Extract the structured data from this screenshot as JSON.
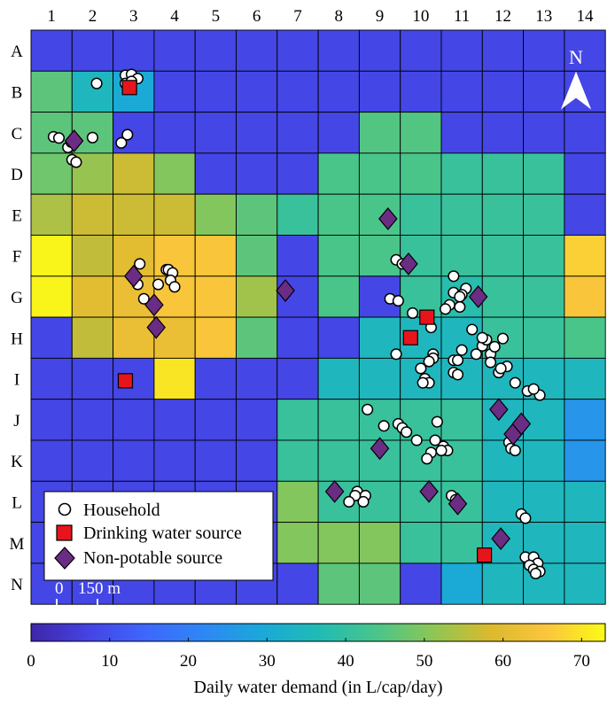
{
  "grid": {
    "columns": [
      "1",
      "2",
      "3",
      "4",
      "5",
      "6",
      "7",
      "8",
      "9",
      "10",
      "11",
      "12",
      "13",
      "14"
    ],
    "rows": [
      "A",
      "B",
      "C",
      "D",
      "E",
      "F",
      "G",
      "H",
      "I",
      "J",
      "K",
      "L",
      "M",
      "N"
    ],
    "cells": [
      [
        8,
        8,
        8,
        8,
        8,
        8,
        8,
        8,
        8,
        8,
        8,
        8,
        8,
        8
      ],
      [
        46,
        35,
        30,
        8,
        8,
        8,
        8,
        8,
        8,
        8,
        8,
        8,
        8,
        8
      ],
      [
        46,
        46,
        8,
        8,
        8,
        8,
        8,
        8,
        45,
        45,
        8,
        8,
        8,
        8
      ],
      [
        48,
        52,
        57,
        50,
        8,
        8,
        8,
        44,
        44,
        44,
        41,
        41,
        41,
        8
      ],
      [
        54,
        57,
        57,
        57,
        50,
        46,
        41,
        44,
        44,
        41,
        41,
        41,
        41,
        8
      ],
      [
        72,
        56,
        60,
        65,
        65,
        46,
        8,
        44,
        44,
        41,
        41,
        41,
        41,
        67
      ],
      [
        72,
        60,
        62,
        65,
        65,
        53,
        8,
        44,
        8,
        41,
        38,
        41,
        41,
        65
      ],
      [
        8,
        56,
        62,
        62,
        65,
        46,
        8,
        8,
        35,
        35,
        35,
        41,
        41,
        44
      ],
      [
        8,
        8,
        8,
        70,
        8,
        8,
        8,
        35,
        35,
        35,
        35,
        35,
        35,
        35
      ],
      [
        8,
        8,
        8,
        8,
        8,
        8,
        41,
        41,
        41,
        41,
        41,
        35,
        35,
        25
      ],
      [
        8,
        8,
        8,
        8,
        8,
        8,
        41,
        41,
        41,
        41,
        41,
        35,
        35,
        25
      ],
      [
        8,
        8,
        8,
        8,
        8,
        8,
        50,
        41,
        41,
        41,
        41,
        35,
        35,
        35
      ],
      [
        8,
        8,
        8,
        8,
        8,
        8,
        50,
        50,
        50,
        41,
        41,
        35,
        35,
        35
      ],
      [
        8,
        8,
        8,
        8,
        8,
        8,
        8,
        46,
        46,
        8,
        30,
        35,
        35,
        35
      ]
    ]
  },
  "households": [
    [
      1.6,
      1.3
    ],
    [
      2.3,
      1.1
    ],
    [
      2.45,
      1.08
    ],
    [
      2.6,
      1.18
    ],
    [
      2.3,
      1.3
    ],
    [
      2.45,
      1.25
    ],
    [
      0.55,
      2.6
    ],
    [
      0.68,
      2.63
    ],
    [
      0.9,
      2.86
    ],
    [
      0.98,
      2.73
    ],
    [
      1.5,
      2.62
    ],
    [
      2.35,
      2.55
    ],
    [
      2.2,
      2.75
    ],
    [
      1.0,
      3.16
    ],
    [
      1.1,
      3.22
    ],
    [
      2.65,
      5.7
    ],
    [
      3.3,
      5.84
    ],
    [
      3.35,
      5.84
    ],
    [
      3.45,
      5.92
    ],
    [
      3.4,
      6.1
    ],
    [
      3.5,
      6.26
    ],
    [
      2.6,
      6.2
    ],
    [
      3.1,
      6.2
    ],
    [
      2.75,
      6.55
    ],
    [
      8.9,
      5.6
    ],
    [
      9.05,
      5.7
    ],
    [
      8.75,
      6.55
    ],
    [
      8.95,
      6.6
    ],
    [
      9.3,
      6.9
    ],
    [
      8.9,
      7.9
    ],
    [
      9.75,
      7.25
    ],
    [
      9.8,
      7.9
    ],
    [
      9.8,
      8.0
    ],
    [
      10.3,
      8.05
    ],
    [
      10.4,
      8.05
    ],
    [
      10.5,
      7.8
    ],
    [
      11.2,
      7.9
    ],
    [
      11.3,
      7.72
    ],
    [
      11.5,
      7.52
    ],
    [
      10.75,
      7.3
    ],
    [
      10.3,
      6.0
    ],
    [
      10.2,
      6.7
    ],
    [
      10.1,
      6.8
    ],
    [
      10.45,
      6.75
    ],
    [
      10.6,
      6.3
    ],
    [
      10.3,
      6.4
    ],
    [
      10.5,
      6.45
    ],
    [
      10.45,
      6.5
    ],
    [
      9.5,
      8.25
    ],
    [
      9.7,
      8.08
    ],
    [
      10.3,
      8.35
    ],
    [
      10.4,
      8.4
    ],
    [
      9.6,
      8.5
    ],
    [
      9.7,
      8.6
    ],
    [
      9.55,
      8.6
    ],
    [
      11.2,
      8.1
    ],
    [
      10.85,
      7.9
    ],
    [
      11.0,
      7.7
    ],
    [
      11.1,
      7.55
    ],
    [
      11.0,
      7.5
    ],
    [
      11.6,
      8.2
    ],
    [
      11.4,
      8.35
    ],
    [
      11.45,
      8.25
    ],
    [
      11.8,
      8.6
    ],
    [
      12.1,
      8.8
    ],
    [
      12.4,
      8.9
    ],
    [
      12.25,
      8.75
    ],
    [
      8.2,
      9.25
    ],
    [
      8.6,
      9.65
    ],
    [
      8.95,
      9.6
    ],
    [
      9.05,
      9.7
    ],
    [
      9.15,
      9.8
    ],
    [
      9.9,
      9.55
    ],
    [
      9.4,
      10.0
    ],
    [
      9.85,
      10.0
    ],
    [
      10.05,
      10.15
    ],
    [
      10.15,
      10.25
    ],
    [
      9.75,
      10.3
    ],
    [
      9.65,
      10.45
    ],
    [
      10.0,
      10.25
    ],
    [
      11.65,
      10.05
    ],
    [
      11.7,
      10.2
    ],
    [
      11.8,
      10.25
    ],
    [
      7.95,
      11.25
    ],
    [
      7.9,
      11.35
    ],
    [
      8.15,
      11.35
    ],
    [
      8.1,
      11.5
    ],
    [
      7.75,
      11.5
    ],
    [
      10.25,
      11.35
    ],
    [
      10.35,
      11.45
    ],
    [
      11.95,
      11.8
    ],
    [
      12.05,
      11.9
    ],
    [
      12.05,
      12.85
    ],
    [
      12.25,
      12.85
    ],
    [
      12.35,
      13.0
    ],
    [
      12.15,
      13.05
    ],
    [
      12.25,
      13.15
    ],
    [
      12.4,
      13.2
    ],
    [
      12.3,
      13.25
    ]
  ],
  "drinking_sources": [
    [
      2.4,
      1.4
    ],
    [
      9.65,
      7.0
    ],
    [
      9.25,
      7.5
    ],
    [
      2.3,
      8.55
    ],
    [
      11.05,
      12.8
    ]
  ],
  "nonpotable_sources": [
    [
      1.05,
      2.7
    ],
    [
      8.7,
      4.6
    ],
    [
      9.2,
      5.7
    ],
    [
      2.5,
      6.0
    ],
    [
      3.0,
      6.7
    ],
    [
      6.2,
      6.35
    ],
    [
      3.05,
      7.25
    ],
    [
      10.9,
      6.5
    ],
    [
      11.75,
      9.85
    ],
    [
      11.4,
      9.25
    ],
    [
      11.95,
      9.6
    ],
    [
      8.5,
      10.2
    ],
    [
      7.4,
      11.25
    ],
    [
      9.7,
      11.25
    ],
    [
      10.4,
      11.55
    ],
    [
      11.45,
      12.4
    ]
  ],
  "legend": {
    "household": "Household",
    "drinking": "Drinking water source",
    "nonpotable": "Non-potable source"
  },
  "scale_bar": {
    "zero": "0",
    "label": "150 m"
  },
  "north_label": "N",
  "colorbar": {
    "title": "Daily water demand (in L/cap/day)",
    "ticks": [
      0,
      10,
      20,
      30,
      40,
      50,
      60,
      70
    ],
    "min": 0,
    "max": 73
  },
  "colors": {
    "household_fill": "#ffffff",
    "drinking_fill": "#e8141c",
    "nonpotable_fill": "#6b2c84"
  }
}
